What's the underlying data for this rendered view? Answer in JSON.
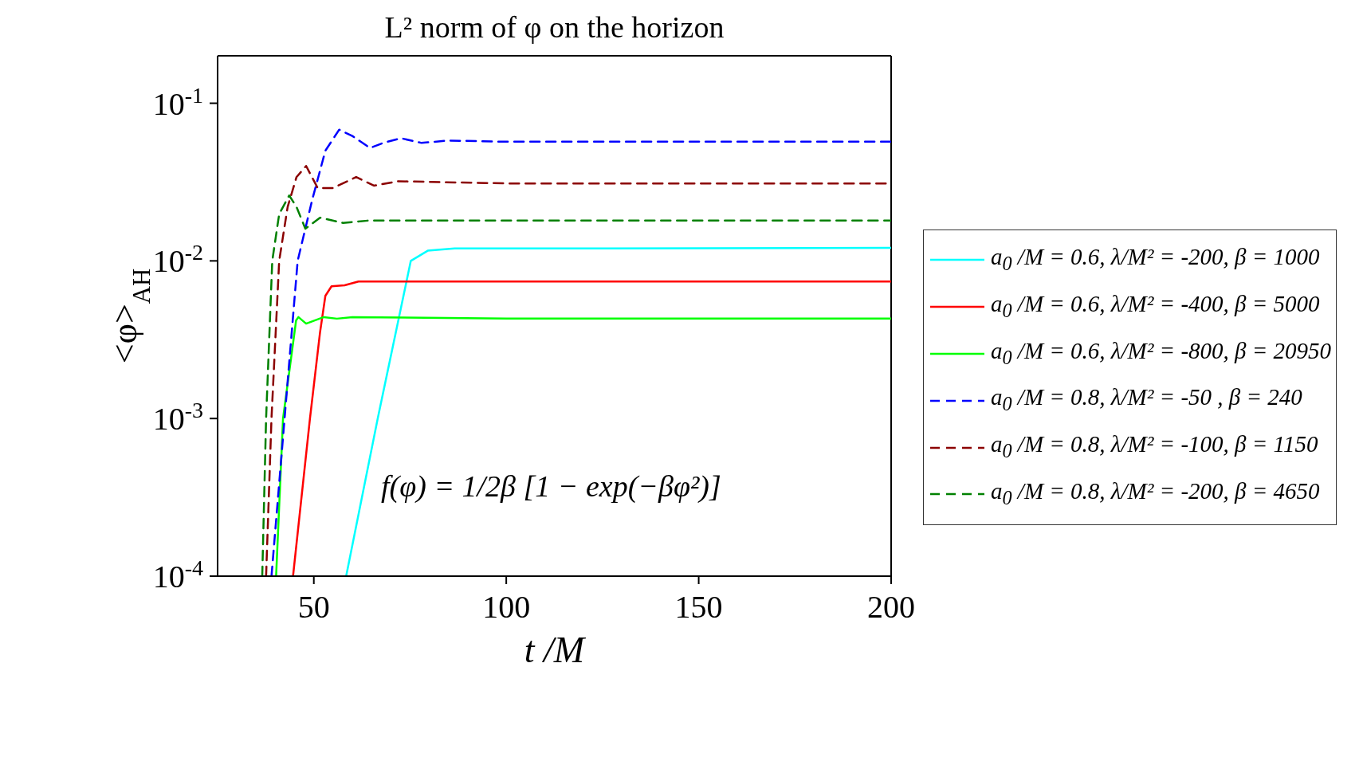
{
  "chart_data": {
    "type": "line",
    "title": "L² norm of φ on the horizon",
    "xlabel": "t /M",
    "ylabel": "<φ>$_{AH}$",
    "log": "y",
    "xlim": [
      25,
      200
    ],
    "xticks": [
      50,
      100,
      150,
      200
    ],
    "ylim": [
      0.0001,
      0.2
    ],
    "yticks": [
      {
        "value": 0.0001,
        "label": "10$^{-4}$"
      },
      {
        "value": 0.001,
        "label": "10$^{-3}$"
      },
      {
        "value": 0.01,
        "label": "10$^{-2}$"
      },
      {
        "value": 0.1,
        "label": "10$^{-1}$"
      }
    ],
    "grid": false,
    "legend": "right",
    "marker": "none",
    "annotations": [
      "f(φ) = 1/2β [1 − exp(−βφ²)]"
    ],
    "series": [
      {
        "name": "a$_{0}$ /M = 0.6, λ/M² = -200, β = 1000",
        "color": "#00ffff",
        "line_style": "solid",
        "x": [
          58.4,
          66.6,
          75.2,
          79.6,
          86.6,
          120,
          200
        ],
        "values": [
          0.0001,
          0.001,
          0.01,
          0.0116,
          0.012,
          0.012,
          0.0121
        ]
      },
      {
        "name": "a$_{0}$ /M = 0.6, λ/M² = -400, β = 5000",
        "color": "#ff0000",
        "line_style": "solid",
        "x": [
          44.6,
          49,
          51.6,
          53,
          54.6,
          58,
          61.6,
          100,
          200
        ],
        "values": [
          0.0001,
          0.001,
          0.0035,
          0.006,
          0.0069,
          0.007,
          0.0074,
          0.0074,
          0.0074
        ]
      },
      {
        "name": "a$_{0}$ /M = 0.6, λ/M² = -800, β = 20950",
        "color": "#00ff00",
        "line_style": "solid",
        "x": [
          40.2,
          42,
          45.4,
          46,
          48,
          52.6,
          56,
          60,
          100,
          200
        ],
        "values": [
          0.0001,
          0.001,
          0.0042,
          0.0044,
          0.004,
          0.0044,
          0.0043,
          0.0044,
          0.0043,
          0.0043
        ]
      },
      {
        "name": "a$_{0}$ /M = 0.8, λ/M² = -50 ,  β = 240",
        "color": "#0000ff",
        "line_style": "dashed",
        "x": [
          39,
          42.4,
          45.8,
          49.6,
          53,
          56.6,
          60,
          64.6,
          68,
          72.6,
          78,
          85,
          100,
          200
        ],
        "values": [
          0.0001,
          0.001,
          0.01,
          0.0245,
          0.05,
          0.068,
          0.062,
          0.052,
          0.056,
          0.06,
          0.056,
          0.058,
          0.057,
          0.057
        ]
      },
      {
        "name": "a$_{0}$ /M = 0.8, λ/M² = -100, β = 1150",
        "color": "#8b0000",
        "line_style": "dashed",
        "x": [
          37.6,
          39,
          41,
          43.2,
          45.5,
          48,
          51,
          55,
          61,
          65.6,
          72,
          100,
          200
        ],
        "values": [
          0.0001,
          0.001,
          0.01,
          0.022,
          0.034,
          0.04,
          0.029,
          0.029,
          0.034,
          0.03,
          0.032,
          0.031,
          0.031
        ]
      },
      {
        "name": "a$_{0}$ /M = 0.8, λ/M² = -200, β = 4650",
        "color": "#008000",
        "line_style": "dashed",
        "x": [
          36.6,
          37.6,
          39.2,
          41,
          43.6,
          45.5,
          47.8,
          51.6,
          57.6,
          64,
          100,
          200
        ],
        "values": [
          0.0001,
          0.001,
          0.01,
          0.0198,
          0.026,
          0.022,
          0.016,
          0.0188,
          0.0174,
          0.018,
          0.018,
          0.018
        ]
      }
    ]
  }
}
